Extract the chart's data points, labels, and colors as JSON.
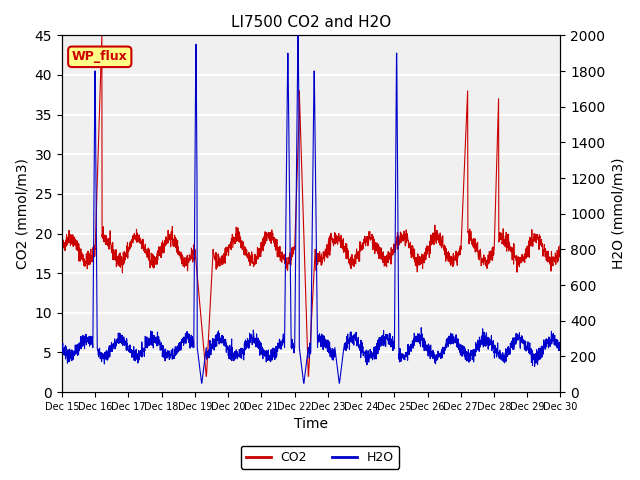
{
  "title": "LI7500 CO2 and H2O",
  "xlabel": "Time",
  "ylabel_left": "CO2 (mmol/m3)",
  "ylabel_right": "H2O (mmol/m3)",
  "ylim_left": [
    0,
    45
  ],
  "ylim_right": [
    0,
    2000
  ],
  "yticks_left": [
    0,
    5,
    10,
    15,
    20,
    25,
    30,
    35,
    40,
    45
  ],
  "yticks_right": [
    0,
    200,
    400,
    600,
    800,
    1000,
    1200,
    1400,
    1600,
    1800,
    2000
  ],
  "xtick_labels": [
    "Dec 15",
    "Dec 16",
    "Dec 17",
    "Dec 18",
    "Dec 19",
    "Dec 20",
    "Dec 21",
    "Dec 22",
    "Dec 23",
    "Dec 24",
    "Dec 25",
    "Dec 26",
    "Dec 27",
    "Dec 28",
    "Dec 29",
    "Dec 30"
  ],
  "annotation_text": "WP_flux",
  "annotation_color": "#cc0000",
  "annotation_bg": "#ffff88",
  "co2_color": "#cc0000",
  "h2o_color": "#0000cc",
  "bg_color": "#e8e8e8",
  "plot_bg": "#f0f0f0",
  "grid_color": "white",
  "n_days": 15,
  "legend_co2": "CO2",
  "legend_h2o": "H2O"
}
